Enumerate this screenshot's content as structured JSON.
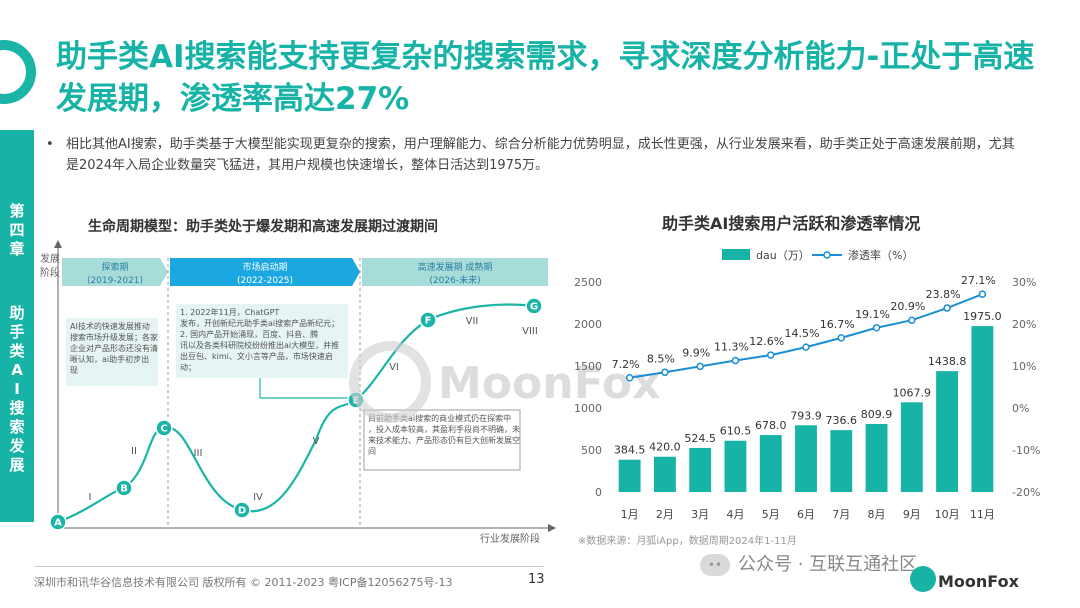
{
  "title": "助手类AI搜索能支持更复杂的搜索需求，寻求深度分析能力-正处于高速发展期，渗透率高达27%",
  "side_tab": {
    "chapter": "第四章",
    "section": "助手类AI搜索发展"
  },
  "bullet": {
    "dot": "•",
    "text": "相比其他AI搜索，助手类基于大模型能实现更复杂的搜索，用户理解能力、综合分析能力优势明显，成长性更强，从行业发展来看，助手类正处于高速发展前期，尤其是2024年入局企业数量突飞猛进，其用户规模也快速增长，整体日活达到1975万。"
  },
  "lifecycle": {
    "title": "生命周期模型：助手类处于爆发期和高速发展期过渡期间",
    "y_label": "发展阶段",
    "x_label": "行业发展阶段",
    "phases": [
      {
        "name": "探索期",
        "years": "(2019-2021)",
        "color": "#a8dcd8"
      },
      {
        "name": "市场启动期",
        "years": "(2022-2025)",
        "color": "#1ba8e0"
      },
      {
        "name": "高速发展期 成熟期",
        "years": "(2026-未来)",
        "color": "#a8dcd8"
      }
    ],
    "notes": [
      "AI技术的快速发展推动搜索市场升级发展；各家企业对产品形态还没有清晰认知，ai助手初步出现",
      "1.   2022年11月，ChatGPT发布，开创新纪元助手类ai搜索产品新纪元；\n2.   国内产品开始涌现，百度、抖音、腾讯以及各类科研院校纷纷推出ai大模型，并推出豆包、kimi、文小言等产品，市场快速启动；",
      "目前助手类ai搜索的商业模式仍在探索中，投入成本较高，其盈利手段尚不明确，未来技术能力、产品形态仍有巨大创新发展空间"
    ],
    "points": [
      "A",
      "B",
      "C",
      "D",
      "E",
      "F",
      "G"
    ],
    "stages": [
      "I",
      "II",
      "III",
      "IV",
      "V",
      "VI",
      "VII",
      "VIII"
    ]
  },
  "watermark": "MoonFox",
  "chart_data": {
    "type": "bar",
    "title": "助手类AI搜索用户活跃和渗透率情况",
    "categories": [
      "1月",
      "2月",
      "3月",
      "4月",
      "5月",
      "6月",
      "7月",
      "8月",
      "9月",
      "10月",
      "11月"
    ],
    "series": [
      {
        "name": "dau（万）",
        "type": "bar",
        "axis": "left",
        "color": "#17b3a6",
        "values": [
          384.5,
          420.0,
          524.5,
          610.5,
          678.0,
          793.9,
          736.6,
          809.9,
          1067.9,
          1438.8,
          1975.0
        ],
        "labels": [
          "384.5",
          "420.0",
          "524.5",
          "610.5",
          "678.0",
          "793.9",
          "736.6",
          "809.9",
          "1067.9",
          "1438.8",
          "1975.0"
        ]
      },
      {
        "name": "渗透率（%）",
        "type": "line",
        "axis": "right",
        "color": "#1a8fd6",
        "values": [
          7.2,
          8.5,
          9.9,
          11.3,
          12.6,
          14.5,
          16.7,
          19.1,
          20.9,
          23.8,
          27.1
        ],
        "labels": [
          "7.2%",
          "8.5%",
          "9.9%",
          "11.3%",
          "12.6%",
          "14.5%",
          "16.7%",
          "19.1%",
          "20.9%",
          "23.8%",
          "27.1%"
        ]
      }
    ],
    "y_left": {
      "range": [
        0,
        2500
      ],
      "ticks": [
        "0",
        "500",
        "1000",
        "1500",
        "2000",
        "2500"
      ]
    },
    "y_right": {
      "range": [
        -20,
        30
      ],
      "ticks": [
        "-20%",
        "-10%",
        "0%",
        "10%",
        "20%",
        "30%"
      ]
    },
    "legend": "top-center",
    "grid": false,
    "source": "※数据来源：月狐iApp，数据周期2024年1-11月"
  },
  "footer": {
    "copyright": "深圳市和讯华谷信息技术有限公司 版权所有 © 2011-2023 粤ICP备12056275号-13",
    "page": "13",
    "wechat": "公众号 · 互联互通社区",
    "brand": "MoonFox"
  }
}
